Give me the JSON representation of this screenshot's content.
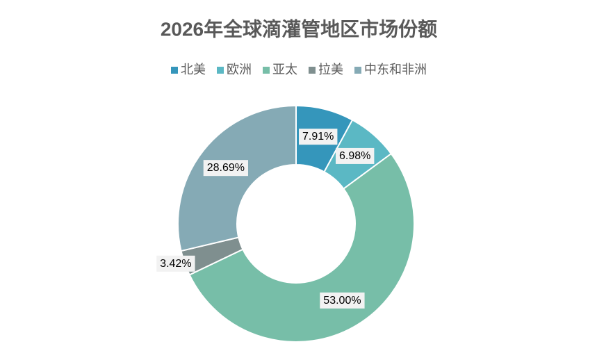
{
  "chart_data": {
    "type": "donut",
    "title": "2026年全球滴灌管地区市场份额",
    "categories": [
      "北美",
      "欧洲",
      "亚太",
      "拉美",
      "中东和非洲"
    ],
    "values": [
      7.91,
      6.98,
      53.0,
      3.42,
      28.69
    ],
    "value_labels": [
      "7.91%",
      "6.98%",
      "53.00%",
      "3.42%",
      "28.69%"
    ],
    "colors": [
      "#3596bb",
      "#5bb8c4",
      "#77bea8",
      "#7f8f8f",
      "#85aab5"
    ],
    "legend": "top"
  }
}
